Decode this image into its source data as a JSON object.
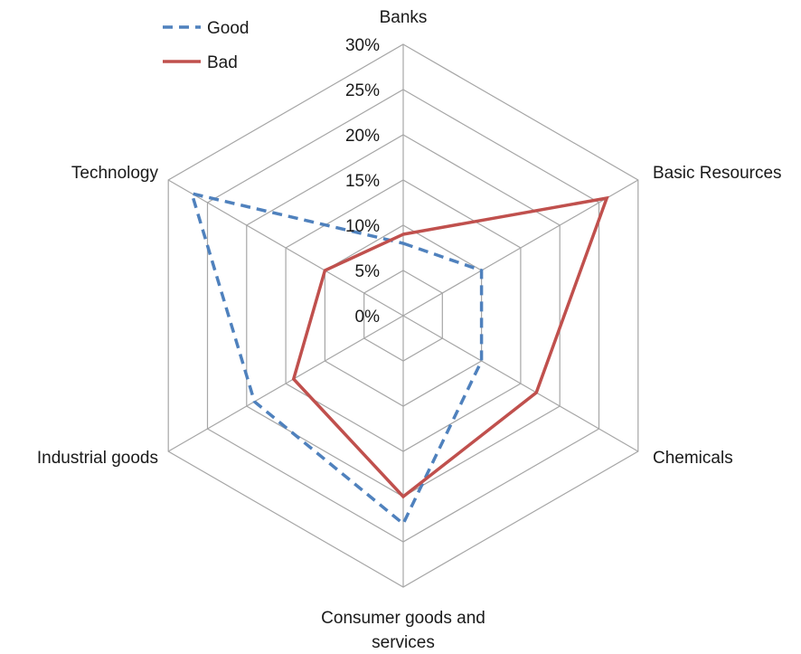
{
  "chart_data": {
    "type": "radar",
    "categories": [
      "Banks",
      "Basic Resources",
      "Chemicals",
      [
        "Consumer goods and",
        "services"
      ],
      "Industrial goods",
      "Technology"
    ],
    "series": [
      {
        "name": "Good",
        "values": [
          8,
          10,
          10,
          23,
          19,
          27
        ],
        "color": "#4f81bd",
        "line_style": "dashed"
      },
      {
        "name": "Bad",
        "values": [
          9,
          26,
          17,
          20,
          14,
          10
        ],
        "color": "#c0504d",
        "line_style": "solid"
      }
    ],
    "r_ticks": [
      "0%",
      "5%",
      "10%",
      "15%",
      "20%",
      "25%",
      "30%"
    ],
    "r_tick_values": [
      0,
      5,
      10,
      15,
      20,
      25,
      30
    ],
    "rlim": [
      0,
      30
    ],
    "grid": true,
    "legend_position": "top-left",
    "gridline_color": "#a6a6a6"
  }
}
